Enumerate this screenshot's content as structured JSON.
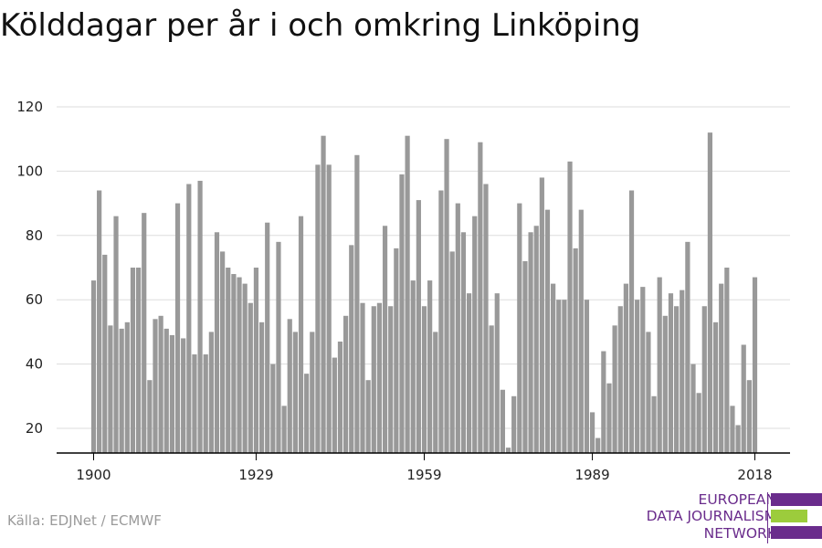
{
  "colors": {
    "bar": "#999999",
    "grid": "#dddddd",
    "axis": "#000000",
    "brand": "#6a2c8c",
    "brand_accent": "#9ccc3c"
  },
  "source": "Källa: EDJNet / ECMWF",
  "logo": {
    "line1": "EUROPEAN",
    "line2": "DATA JOURNALISM",
    "line3": "NETWORK"
  },
  "chart_data": {
    "type": "bar",
    "title": "Kölddagar per år i och omkring Linköping",
    "xlabel": "",
    "ylabel": "",
    "ylim": [
      12,
      124
    ],
    "yticks": [
      20,
      40,
      60,
      80,
      100,
      120
    ],
    "xticks": [
      1900,
      1929,
      1959,
      1989,
      2018
    ],
    "grid": true,
    "x": [
      1900,
      1901,
      1902,
      1903,
      1904,
      1905,
      1906,
      1907,
      1908,
      1909,
      1910,
      1911,
      1912,
      1913,
      1914,
      1915,
      1916,
      1917,
      1918,
      1919,
      1920,
      1921,
      1922,
      1923,
      1924,
      1925,
      1926,
      1927,
      1928,
      1929,
      1930,
      1931,
      1932,
      1933,
      1934,
      1935,
      1936,
      1937,
      1938,
      1939,
      1940,
      1941,
      1942,
      1943,
      1944,
      1945,
      1946,
      1947,
      1948,
      1949,
      1950,
      1951,
      1952,
      1953,
      1954,
      1955,
      1956,
      1957,
      1958,
      1959,
      1960,
      1961,
      1962,
      1963,
      1964,
      1965,
      1966,
      1967,
      1968,
      1969,
      1970,
      1971,
      1972,
      1973,
      1974,
      1975,
      1976,
      1977,
      1978,
      1979,
      1980,
      1981,
      1982,
      1983,
      1984,
      1985,
      1986,
      1987,
      1988,
      1989,
      1990,
      1991,
      1992,
      1993,
      1994,
      1995,
      1996,
      1997,
      1998,
      1999,
      2000,
      2001,
      2002,
      2003,
      2004,
      2005,
      2006,
      2007,
      2008,
      2009,
      2010,
      2011,
      2012,
      2013,
      2014,
      2015,
      2016,
      2017,
      2018
    ],
    "values": [
      66,
      94,
      74,
      52,
      86,
      51,
      53,
      70,
      70,
      87,
      35,
      54,
      55,
      51,
      49,
      90,
      48,
      96,
      43,
      97,
      43,
      50,
      81,
      75,
      70,
      68,
      67,
      65,
      59,
      70,
      53,
      84,
      40,
      78,
      27,
      54,
      50,
      86,
      37,
      50,
      102,
      111,
      102,
      42,
      47,
      55,
      77,
      105,
      59,
      35,
      58,
      59,
      83,
      58,
      76,
      99,
      111,
      66,
      91,
      58,
      66,
      50,
      94,
      110,
      75,
      90,
      81,
      62,
      86,
      109,
      96,
      52,
      62,
      32,
      14,
      30,
      90,
      72,
      81,
      83,
      98,
      88,
      65,
      60,
      60,
      103,
      76,
      88,
      60,
      25,
      17,
      44,
      34,
      52,
      58,
      65,
      94,
      60,
      64,
      50,
      30,
      67,
      55,
      62,
      58,
      63,
      78,
      40,
      31,
      58,
      112,
      53,
      65,
      70,
      27,
      21,
      46,
      35,
      67
    ]
  }
}
